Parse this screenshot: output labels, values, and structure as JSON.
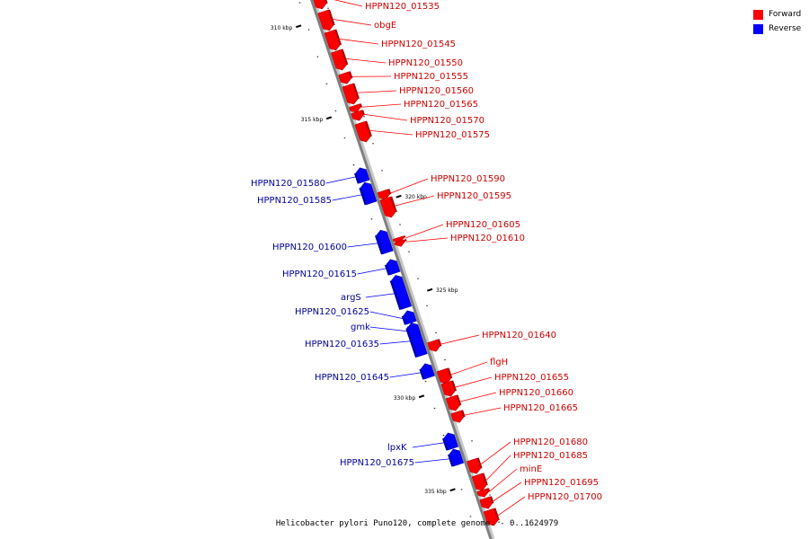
{
  "legend": {
    "forward_label": "Forward",
    "reverse_label": "Reverse",
    "forward_color": "#ff0000",
    "reverse_color": "#0000ff"
  },
  "footer": {
    "caption": "Helicobacter pylori Puno120, complete genome. - 0..1624979"
  },
  "ticks": [
    {
      "label": "310 kbp",
      "side": "left"
    },
    {
      "label": "315 kbp",
      "side": "left"
    },
    {
      "label": "320 kbp",
      "side": "right"
    },
    {
      "label": "325 kbp",
      "side": "right"
    },
    {
      "label": "330 kbp",
      "side": "left"
    },
    {
      "label": "335 kbp",
      "side": "left"
    }
  ],
  "genes": [
    {
      "name": "HPPN120_01535",
      "strand": "forward"
    },
    {
      "name": "obgE",
      "strand": "forward"
    },
    {
      "name": "HPPN120_01545",
      "strand": "forward"
    },
    {
      "name": "HPPN120_01550",
      "strand": "forward"
    },
    {
      "name": "HPPN120_01555",
      "strand": "forward"
    },
    {
      "name": "HPPN120_01560",
      "strand": "forward"
    },
    {
      "name": "HPPN120_01565",
      "strand": "forward"
    },
    {
      "name": "HPPN120_01570",
      "strand": "forward"
    },
    {
      "name": "HPPN120_01575",
      "strand": "forward"
    },
    {
      "name": "HPPN120_01580",
      "strand": "reverse"
    },
    {
      "name": "HPPN120_01585",
      "strand": "reverse"
    },
    {
      "name": "HPPN120_01590",
      "strand": "forward"
    },
    {
      "name": "HPPN120_01595",
      "strand": "forward"
    },
    {
      "name": "HPPN120_01600",
      "strand": "reverse"
    },
    {
      "name": "HPPN120_01605",
      "strand": "forward"
    },
    {
      "name": "HPPN120_01610",
      "strand": "forward"
    },
    {
      "name": "HPPN120_01615",
      "strand": "reverse"
    },
    {
      "name": "argS",
      "strand": "reverse"
    },
    {
      "name": "HPPN120_01625",
      "strand": "reverse"
    },
    {
      "name": "gmk",
      "strand": "reverse"
    },
    {
      "name": "HPPN120_01635",
      "strand": "reverse"
    },
    {
      "name": "HPPN120_01640",
      "strand": "forward"
    },
    {
      "name": "HPPN120_01645",
      "strand": "reverse"
    },
    {
      "name": "flgH",
      "strand": "forward"
    },
    {
      "name": "HPPN120_01655",
      "strand": "forward"
    },
    {
      "name": "HPPN120_01660",
      "strand": "forward"
    },
    {
      "name": "HPPN120_01665",
      "strand": "forward"
    },
    {
      "name": "lpxK",
      "strand": "reverse"
    },
    {
      "name": "HPPN120_01675",
      "strand": "reverse"
    },
    {
      "name": "HPPN120_01680",
      "strand": "forward"
    },
    {
      "name": "HPPN120_01685",
      "strand": "forward"
    },
    {
      "name": "minE",
      "strand": "forward"
    },
    {
      "name": "HPPN120_01695",
      "strand": "forward"
    },
    {
      "name": "HPPN120_01700",
      "strand": "forward"
    }
  ]
}
